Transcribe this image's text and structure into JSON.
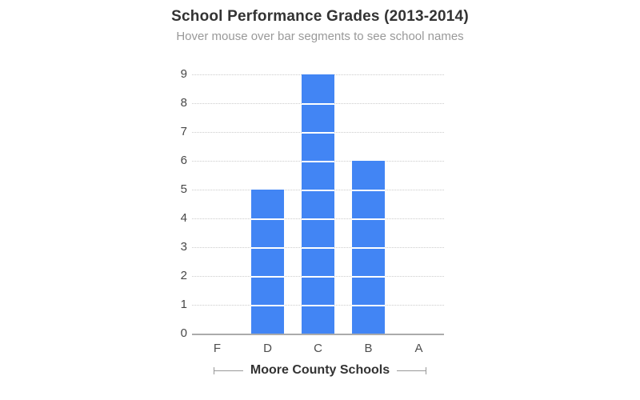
{
  "chart_data": {
    "type": "bar",
    "title": "School Performance Grades (2013-2014)",
    "subtitle": "Hover mouse over bar segments to see school names",
    "categories": [
      "F",
      "D",
      "C",
      "B",
      "A"
    ],
    "values": [
      0,
      5,
      9,
      6,
      0
    ],
    "segment_unit": 1,
    "xlabel": "Moore County Schools",
    "ylabel": "",
    "ylim": [
      0,
      9
    ],
    "yticks": [
      0,
      1,
      2,
      3,
      4,
      5,
      6,
      7,
      8,
      9
    ],
    "grid": "horizontal-dotted",
    "legend": "none",
    "colors": {
      "bar": "#4285f4",
      "segment_divider": "#ffffff",
      "title": "#333333",
      "subtitle": "#999999",
      "y_axis_text": "#474747",
      "x_axis_text": "#4d4d4d",
      "gridline": "#cccccc",
      "axis_line": "#ababab",
      "bracket": "#999999",
      "x_axis_title": "#333333"
    }
  }
}
